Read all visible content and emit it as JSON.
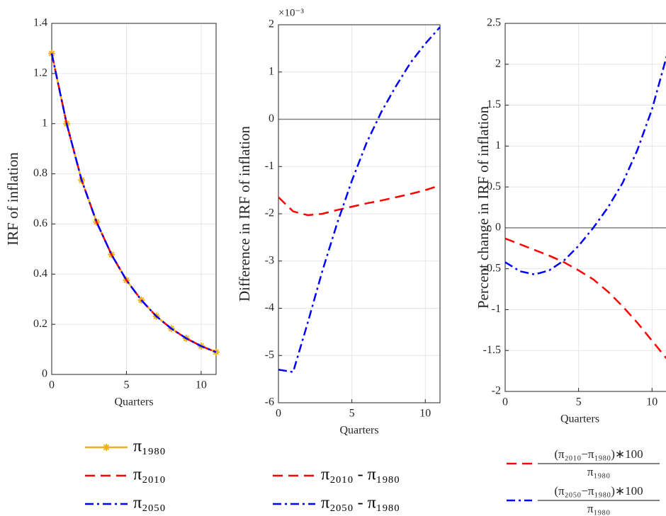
{
  "chart_data": [
    {
      "type": "line",
      "ylabel": "IRF of inflation",
      "xlabel": "Quarters",
      "x": [
        0,
        1,
        2,
        3,
        4,
        5,
        6,
        7,
        8,
        9,
        10,
        11
      ],
      "xlim": [
        0,
        11
      ],
      "xticks": [
        0,
        5,
        10
      ],
      "ylim": [
        0,
        1.4
      ],
      "yticks": [
        0,
        0.2,
        0.4,
        0.6,
        0.8,
        1,
        1.2,
        1.4
      ],
      "grid": true,
      "series": [
        {
          "name": "π₁₉₈₀",
          "color": "#edb120",
          "linestyle": "-",
          "marker": "*",
          "values": [
            1.28,
            1.0,
            0.775,
            0.608,
            0.478,
            0.376,
            0.296,
            0.232,
            0.183,
            0.144,
            0.113,
            0.089
          ]
        },
        {
          "name": "π₂₀₁₀",
          "color": "#ff0000",
          "linestyle": "--",
          "values": [
            1.28,
            1.0,
            0.775,
            0.608,
            0.478,
            0.376,
            0.296,
            0.232,
            0.183,
            0.144,
            0.113,
            0.089
          ]
        },
        {
          "name": "π₂₀₅₀",
          "color": "#0000ff",
          "linestyle": "-.",
          "values": [
            1.28,
            1.0,
            0.775,
            0.608,
            0.478,
            0.376,
            0.296,
            0.232,
            0.183,
            0.144,
            0.113,
            0.089
          ]
        }
      ]
    },
    {
      "type": "line",
      "ylabel": "Difference in IRF of inflation",
      "xlabel": "Quarters",
      "y_scale": "×10⁻³",
      "x": [
        0,
        1,
        2,
        3,
        4,
        5,
        6,
        7,
        8,
        9,
        10,
        11
      ],
      "xlim": [
        0,
        11
      ],
      "xticks": [
        0,
        5,
        10
      ],
      "ylim": [
        -6,
        2
      ],
      "yticks": [
        -6,
        -5,
        -4,
        -3,
        -2,
        -1,
        0,
        1,
        2
      ],
      "grid": true,
      "hline": 0,
      "series": [
        {
          "name": "π₂₀₁₀ - π₁₉₈₀",
          "color": "#ff0000",
          "linestyle": "--",
          "values": [
            -1.65,
            -1.95,
            -2.03,
            -2.0,
            -1.92,
            -1.85,
            -1.78,
            -1.72,
            -1.65,
            -1.58,
            -1.5,
            -1.4
          ]
        },
        {
          "name": "π₂₀₅₀ - π₁₉₈₀",
          "color": "#0000ff",
          "linestyle": "-.",
          "values": [
            -5.3,
            -5.35,
            -4.3,
            -3.2,
            -2.2,
            -1.3,
            -0.5,
            0.15,
            0.7,
            1.2,
            1.6,
            1.95
          ]
        }
      ]
    },
    {
      "type": "line",
      "ylabel": "Percent change in IRF of inflation",
      "xlabel": "Quarters",
      "x": [
        0,
        1,
        2,
        3,
        4,
        5,
        6,
        7,
        8,
        9,
        10,
        11
      ],
      "xlim": [
        0,
        11
      ],
      "xticks": [
        0,
        5,
        10
      ],
      "ylim": [
        -2,
        2.5
      ],
      "yticks": [
        -2,
        -1.5,
        -1,
        -0.5,
        0,
        0.5,
        1,
        1.5,
        2,
        2.5
      ],
      "grid": true,
      "hline": 0,
      "series": [
        {
          "name": "(π₂₀₁₀−π₁₉₈₀)∗100",
          "name_denominator": "π₁₉₈₀",
          "color": "#ff0000",
          "linestyle": "--",
          "values": [
            -0.13,
            -0.2,
            -0.27,
            -0.34,
            -0.42,
            -0.52,
            -0.63,
            -0.78,
            -0.96,
            -1.16,
            -1.38,
            -1.6
          ]
        },
        {
          "name": "(π₂₀₅₀−π₁₉₈₀)∗100",
          "name_denominator": "π₁₉₈₀",
          "color": "#0000ff",
          "linestyle": "-.",
          "values": [
            -0.42,
            -0.53,
            -0.57,
            -0.52,
            -0.4,
            -0.22,
            0.0,
            0.25,
            0.55,
            0.95,
            1.45,
            2.1
          ]
        }
      ]
    }
  ]
}
